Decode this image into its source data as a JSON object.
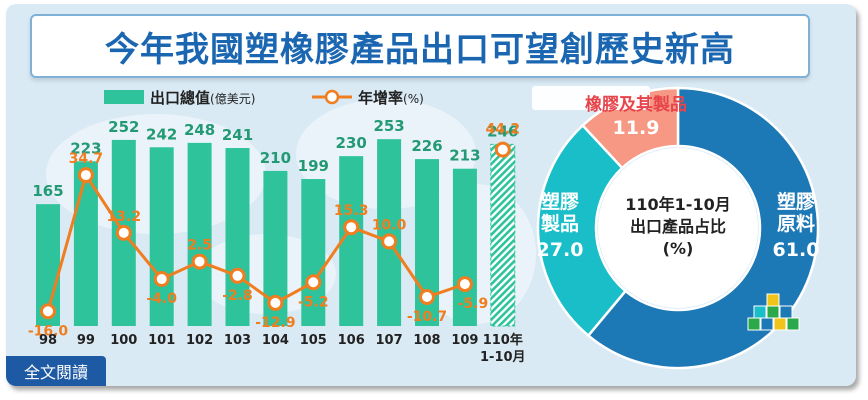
{
  "title": "今年我國塑橡膠產品出口可望創歷史新高",
  "read_button": "全文閱讀",
  "colors": {
    "bar": "#2ec39b",
    "line": "#f07d1f",
    "value_green": "#239a74",
    "donut_plastic_raw": "#1d78b6",
    "donut_plastic_products": "#19bec8",
    "donut_rubber": "#f69883",
    "rubber_label": "#e6444a"
  },
  "chart_data": [
    {
      "type": "bar",
      "categories": [
        "98",
        "99",
        "100",
        "101",
        "102",
        "103",
        "104",
        "105",
        "106",
        "107",
        "108",
        "109",
        "110年\n1-10月"
      ],
      "category_lines": [
        [
          "98"
        ],
        [
          "99"
        ],
        [
          "100"
        ],
        [
          "101"
        ],
        [
          "102"
        ],
        [
          "103"
        ],
        [
          "104"
        ],
        [
          "105"
        ],
        [
          "106"
        ],
        [
          "107"
        ],
        [
          "108"
        ],
        [
          "109"
        ],
        [
          "110年",
          "1-10月"
        ]
      ],
      "series": [
        {
          "name": "出口總值",
          "name_suffix": "(億美元)",
          "kind": "bar",
          "values": [
            165,
            223,
            252,
            242,
            248,
            241,
            210,
            199,
            230,
            253,
            226,
            213,
            246
          ]
        },
        {
          "name": "年增率",
          "name_suffix": "(%)",
          "kind": "line",
          "values": [
            -16.0,
            34.7,
            13.2,
            -4.0,
            2.5,
            -2.8,
            -12.9,
            -5.2,
            15.3,
            10.0,
            -10.7,
            -5.9,
            44.2
          ]
        }
      ],
      "value_labels": [
        "165",
        "223",
        "252",
        "242",
        "248",
        "241",
        "210",
        "199",
        "230",
        "253",
        "226",
        "213",
        "246"
      ],
      "rate_labels": [
        "-16.0",
        "34.7",
        "13.2",
        "-4.0",
        "2.5",
        "-2.8",
        "-12.9",
        "-5.2",
        "15.3",
        "10.0",
        "-10.7",
        "-5.9",
        "44.2"
      ],
      "last_category_estimated": true,
      "bar_ylim": [
        0,
        260
      ],
      "line_ylim": [
        -20,
        50
      ],
      "legend_placement": "top-left"
    },
    {
      "type": "pie",
      "title_lines": [
        "110年1-10月",
        "出口產品占比",
        "(%)"
      ],
      "slices": [
        {
          "name_lines": [
            "塑膠",
            "原料"
          ],
          "value": 61.0,
          "value_label": "61.0"
        },
        {
          "name_lines": [
            "塑膠",
            "製品"
          ],
          "value": 27.0,
          "value_label": "27.0"
        },
        {
          "name_lines": [
            "橡膠及其製品"
          ],
          "value": 11.9,
          "value_label": "11.9"
        }
      ]
    }
  ]
}
